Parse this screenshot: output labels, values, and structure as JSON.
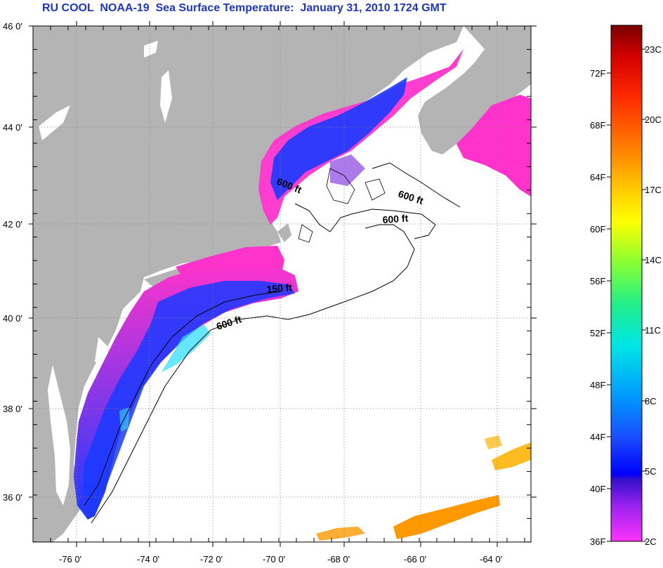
{
  "title": "RU COOL  NOAA-19  Sea Surface Temperature:  January 31, 2010 1724 GMT",
  "lat_labels": [
    "46 0'",
    "44 0'",
    "42 0'",
    "40 0'",
    "38 0'",
    "36 0'"
  ],
  "lon_labels": [
    "-76 0'",
    "-74 0'",
    "-72 0'",
    "-70 0'",
    "-68 0'",
    "-66 0'",
    "-64 0'"
  ],
  "contours": [
    {
      "label": "600 ft"
    },
    {
      "label": "600 ft"
    },
    {
      "label": "600 ft"
    },
    {
      "label": "150 ft"
    },
    {
      "label": "600 ft"
    }
  ],
  "colorbar": {
    "fahrenheit": [
      "72F",
      "68F",
      "64F",
      "60F",
      "56F",
      "52F",
      "48F",
      "44F",
      "40F",
      "36F"
    ],
    "celsius": [
      "23C",
      "20C",
      "17C",
      "14C",
      "11C",
      "8C",
      "5C",
      "2C"
    ]
  },
  "colors": {
    "land": "#b4b4b4",
    "water": "#ffffff",
    "title": "#1f35c8",
    "cold_pink": "#ff33cc",
    "magenta": "#dd22ee",
    "purple": "#7722dd",
    "blue": "#1a3aff",
    "cyan": "#33ddff",
    "orange": "#ff9900",
    "gold": "#ffbb22"
  }
}
